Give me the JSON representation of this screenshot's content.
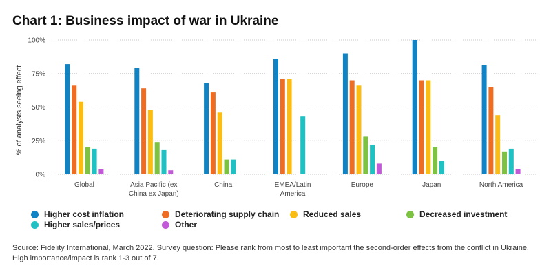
{
  "title": "Chart 1: Business impact of war in Ukraine",
  "source": "Source: Fidelity International, March 2022. Survey question: Please rank from most to least important the second-order effects from the conflict in Ukraine. High importance/impact is rank 1-3 out of 7.",
  "chart_data": {
    "type": "bar",
    "ylabel": "% of analysts seeing effect",
    "ylim": [
      0,
      100
    ],
    "yticks": [
      "0%",
      "25%",
      "50%",
      "75%",
      "100%"
    ],
    "grid": "horizontal dotted",
    "legend_position": "bottom",
    "categories": [
      [
        "Global"
      ],
      [
        "Asia Pacific (ex",
        "China ex Japan)"
      ],
      [
        "China"
      ],
      [
        "EMEA/Latin",
        "America"
      ],
      [
        "Europe"
      ],
      [
        "Japan"
      ],
      [
        "North America"
      ]
    ],
    "series": [
      {
        "name": "Higher cost inflation",
        "color": "#0f83c4",
        "values": [
          82,
          79,
          68,
          86,
          90,
          100,
          81
        ]
      },
      {
        "name": "Deteriorating supply chain",
        "color": "#ef6c23",
        "values": [
          66,
          64,
          61,
          71,
          70,
          70,
          65
        ]
      },
      {
        "name": "Reduced sales",
        "color": "#fbbd13",
        "values": [
          54,
          48,
          46,
          71,
          66,
          70,
          44
        ]
      },
      {
        "name": "Decreased investment",
        "color": "#7dc242",
        "values": [
          20,
          24,
          11,
          0,
          28,
          20,
          17
        ]
      },
      {
        "name": "Higher sales/prices",
        "color": "#1fc1c3",
        "values": [
          19,
          18,
          11,
          43,
          22,
          10,
          19
        ]
      },
      {
        "name": "Other",
        "color": "#c25ad8",
        "values": [
          4,
          3,
          0,
          0,
          8,
          0,
          4
        ]
      }
    ]
  }
}
